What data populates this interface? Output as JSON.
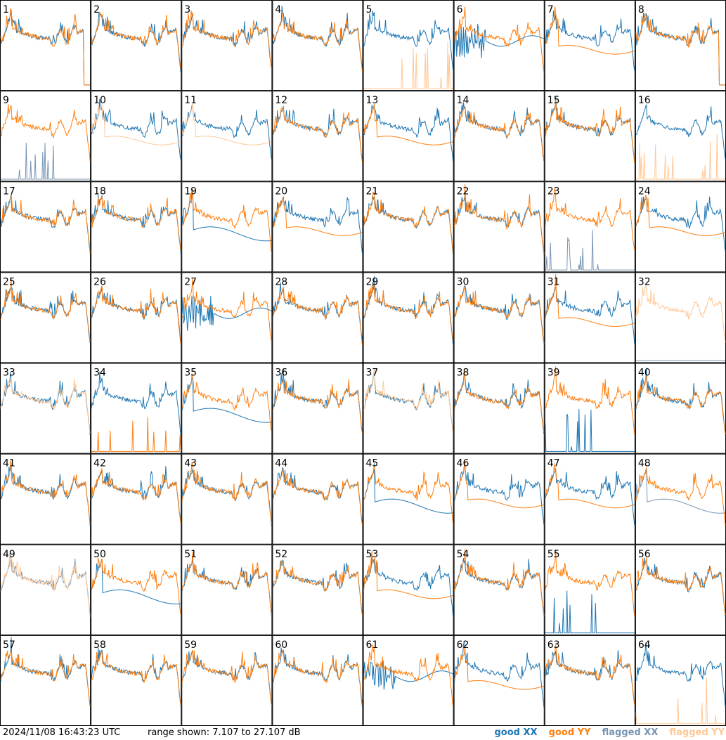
{
  "chart_data": {
    "type": "line",
    "layout": "8x8 small multiples",
    "panels": [
      {
        "id": "1",
        "style": "bothdrop",
        "xx": "good",
        "yy": "good"
      },
      {
        "id": "2",
        "style": "normal",
        "xx": "good",
        "yy": "good"
      },
      {
        "id": "3",
        "style": "normal",
        "xx": "good",
        "yy": "good"
      },
      {
        "id": "4",
        "style": "normal",
        "xx": "good",
        "yy": "good"
      },
      {
        "id": "5",
        "style": "yyspike",
        "xx": "good",
        "yy": "flagged"
      },
      {
        "id": "6",
        "style": "xxwave",
        "xx": "good",
        "yy": "good"
      },
      {
        "id": "7",
        "style": "yylow",
        "xx": "good",
        "yy": "good"
      },
      {
        "id": "8",
        "style": "bothdrop",
        "xx": "good",
        "yy": "good"
      },
      {
        "id": "9",
        "style": "xxspike",
        "xx": "flagged",
        "yy": "good"
      },
      {
        "id": "10",
        "style": "yylow",
        "xx": "good",
        "yy": "flagged"
      },
      {
        "id": "11",
        "style": "yylow",
        "xx": "good",
        "yy": "flagged"
      },
      {
        "id": "12",
        "style": "normal",
        "xx": "good",
        "yy": "good"
      },
      {
        "id": "13",
        "style": "yylow",
        "xx": "good",
        "yy": "good"
      },
      {
        "id": "14",
        "style": "normal",
        "xx": "good",
        "yy": "good"
      },
      {
        "id": "15",
        "style": "normal",
        "xx": "good",
        "yy": "good"
      },
      {
        "id": "16",
        "style": "yyspike",
        "xx": "good",
        "yy": "flagged"
      },
      {
        "id": "17",
        "style": "normal",
        "xx": "good",
        "yy": "good"
      },
      {
        "id": "18",
        "style": "normal",
        "xx": "good",
        "yy": "good"
      },
      {
        "id": "19",
        "style": "xxlow",
        "xx": "good",
        "yy": "good"
      },
      {
        "id": "20",
        "style": "yylow",
        "xx": "good",
        "yy": "good"
      },
      {
        "id": "21",
        "style": "normal",
        "xx": "good",
        "yy": "good"
      },
      {
        "id": "22",
        "style": "normal",
        "xx": "good",
        "yy": "good"
      },
      {
        "id": "23",
        "style": "xxspike",
        "xx": "flagged",
        "yy": "good"
      },
      {
        "id": "24",
        "style": "yylow",
        "xx": "good",
        "yy": "good"
      },
      {
        "id": "25",
        "style": "normal",
        "xx": "good",
        "yy": "good"
      },
      {
        "id": "26",
        "style": "normal",
        "xx": "good",
        "yy": "good"
      },
      {
        "id": "27",
        "style": "xxwave",
        "xx": "good",
        "yy": "good"
      },
      {
        "id": "28",
        "style": "normal",
        "xx": "good",
        "yy": "good"
      },
      {
        "id": "29",
        "style": "normal",
        "xx": "good",
        "yy": "good"
      },
      {
        "id": "30",
        "style": "normal",
        "xx": "good",
        "yy": "good"
      },
      {
        "id": "31",
        "style": "yylow",
        "xx": "good",
        "yy": "good"
      },
      {
        "id": "32",
        "style": "yyonly",
        "xx": "flagged",
        "yy": "flagged"
      },
      {
        "id": "33",
        "style": "normal",
        "xx": "good",
        "yy": "flagged"
      },
      {
        "id": "34",
        "style": "yyspike",
        "xx": "good",
        "yy": "good"
      },
      {
        "id": "35",
        "style": "xxlow",
        "xx": "good",
        "yy": "good"
      },
      {
        "id": "36",
        "style": "normal",
        "xx": "good",
        "yy": "good"
      },
      {
        "id": "37",
        "style": "normal",
        "xx": "good",
        "yy": "flagged"
      },
      {
        "id": "38",
        "style": "normal",
        "xx": "good",
        "yy": "good"
      },
      {
        "id": "39",
        "style": "xxspike",
        "xx": "good",
        "yy": "good"
      },
      {
        "id": "40",
        "style": "normal",
        "xx": "good",
        "yy": "good"
      },
      {
        "id": "41",
        "style": "normal",
        "xx": "good",
        "yy": "good"
      },
      {
        "id": "42",
        "style": "normal",
        "xx": "good",
        "yy": "good"
      },
      {
        "id": "43",
        "style": "normal",
        "xx": "good",
        "yy": "good"
      },
      {
        "id": "44",
        "style": "normal",
        "xx": "good",
        "yy": "good"
      },
      {
        "id": "45",
        "style": "xxlow",
        "xx": "good",
        "yy": "good"
      },
      {
        "id": "46",
        "style": "yylow",
        "xx": "good",
        "yy": "good"
      },
      {
        "id": "47",
        "style": "yylow",
        "xx": "good",
        "yy": "good"
      },
      {
        "id": "48",
        "style": "xxlow",
        "xx": "flagged",
        "yy": "good"
      },
      {
        "id": "49",
        "style": "normal",
        "xx": "flagged",
        "yy": "flagged"
      },
      {
        "id": "50",
        "style": "xxlow",
        "xx": "good",
        "yy": "good"
      },
      {
        "id": "51",
        "style": "normal",
        "xx": "good",
        "yy": "good"
      },
      {
        "id": "52",
        "style": "normal",
        "xx": "good",
        "yy": "good"
      },
      {
        "id": "53",
        "style": "yylow",
        "xx": "good",
        "yy": "good"
      },
      {
        "id": "54",
        "style": "normal",
        "xx": "good",
        "yy": "good"
      },
      {
        "id": "55",
        "style": "xxspike",
        "xx": "good",
        "yy": "good"
      },
      {
        "id": "56",
        "style": "normal",
        "xx": "good",
        "yy": "good"
      },
      {
        "id": "57",
        "style": "normal",
        "xx": "good",
        "yy": "good"
      },
      {
        "id": "58",
        "style": "normal",
        "xx": "good",
        "yy": "good"
      },
      {
        "id": "59",
        "style": "normal",
        "xx": "good",
        "yy": "good"
      },
      {
        "id": "60",
        "style": "normal",
        "xx": "good",
        "yy": "good"
      },
      {
        "id": "61",
        "style": "xxwave",
        "xx": "good",
        "yy": "good"
      },
      {
        "id": "62",
        "style": "yylow",
        "xx": "good",
        "yy": "good"
      },
      {
        "id": "63",
        "style": "normal",
        "xx": "good",
        "yy": "good"
      },
      {
        "id": "64",
        "style": "yyspike",
        "xx": "good",
        "yy": "flagged"
      }
    ],
    "y_range_db": [
      7.107,
      27.107
    ],
    "series": [
      {
        "name": "good XX",
        "color": "#1f77b4"
      },
      {
        "name": "good YY",
        "color": "#ff7f0e"
      },
      {
        "name": "flagged XX",
        "color": "#7896b4"
      },
      {
        "name": "flagged YY",
        "color": "#ffc896"
      }
    ],
    "grid": false,
    "legend_position": "bottom-right"
  },
  "footer": {
    "timestamp": "2024/11/08 16:43:23 UTC",
    "range_text": "range shown: 7.107 to 27.107 dB"
  }
}
